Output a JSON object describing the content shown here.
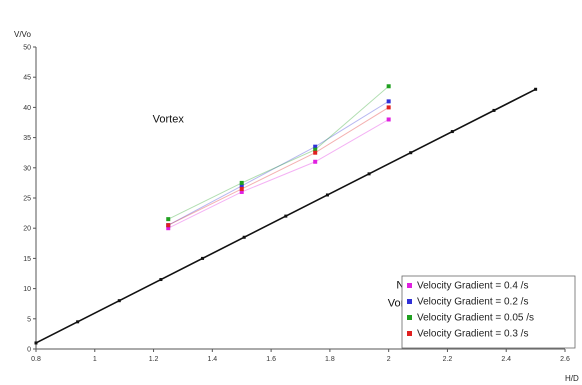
{
  "chart_data": {
    "type": "scatter",
    "xlabel": "H/D",
    "ylabel": "V/Vo",
    "xlim": [
      0.8,
      2.6
    ],
    "ylim": [
      0,
      50
    ],
    "x_ticks": [
      "0.8",
      "1",
      "1.2",
      "1.4",
      "1.6",
      "1.8",
      "2",
      "2.2",
      "2.4",
      "2.6"
    ],
    "y_ticks": [
      "0",
      "5",
      "10",
      "15",
      "20",
      "25",
      "30",
      "35",
      "40",
      "45",
      "50"
    ],
    "grid": false,
    "legend_position": "bottom-right",
    "annotations": [
      {
        "text": "Vortex",
        "x": 1.25,
        "y": 37.5
      },
      {
        "text": "No",
        "x": 2.05,
        "y": 10
      },
      {
        "text": "Vortex",
        "x": 2.05,
        "y": 7
      }
    ],
    "boundary_line": {
      "x": [
        0.8,
        2.5
      ],
      "y": [
        1,
        43
      ]
    },
    "series": [
      {
        "name": "Velocity Gradient = 0.4 /s",
        "color": "#e020e0",
        "x": [
          1.25,
          1.5,
          1.75,
          2.0
        ],
        "y": [
          20,
          26,
          31,
          38
        ]
      },
      {
        "name": "Velocity Gradient = 0.2 /s",
        "color": "#3030d8",
        "x": [
          1.25,
          1.5,
          1.75,
          2.0
        ],
        "y": [
          20.5,
          27,
          33.5,
          41
        ]
      },
      {
        "name": "Velocity Gradient = 0.05 /s",
        "color": "#20a020",
        "x": [
          1.25,
          1.5,
          1.75,
          2.0
        ],
        "y": [
          21.5,
          27.5,
          33,
          43.5
        ]
      },
      {
        "name": "Velocity Gradient = 0.3 /s",
        "color": "#e02020",
        "x": [
          1.25,
          1.5,
          1.75,
          2.0
        ],
        "y": [
          20.5,
          26.5,
          32.5,
          40
        ]
      }
    ]
  }
}
